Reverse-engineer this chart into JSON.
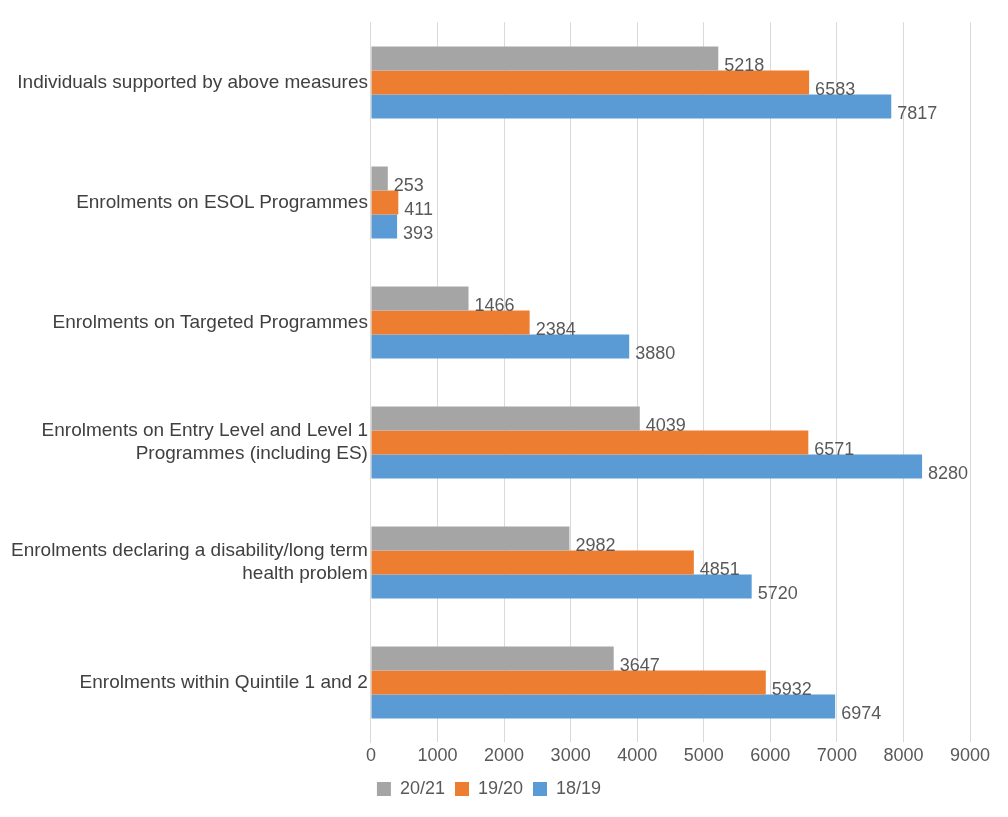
{
  "chart_data": {
    "type": "bar",
    "orientation": "horizontal",
    "categories": [
      "Individuals supported by above measures",
      "Enrolments on ESOL Programmes",
      "Enrolments on Targeted Programmes",
      "Enrolments on Entry Level and Level 1 Programmes (including ES)",
      "Enrolments declaring a disability/long term health problem",
      "Enrolments within Quintile 1 and 2"
    ],
    "series": [
      {
        "name": "20/21",
        "color": "#a5a5a5",
        "values": [
          5218,
          253,
          1466,
          4039,
          2982,
          3647
        ]
      },
      {
        "name": "19/20",
        "color": "#ed7d31",
        "values": [
          6583,
          411,
          2384,
          6571,
          4851,
          5932
        ]
      },
      {
        "name": "18/19",
        "color": "#5b9bd5",
        "values": [
          7817,
          393,
          3880,
          8280,
          5720,
          6974
        ]
      }
    ],
    "xlim": [
      0,
      9000
    ],
    "xticks": [
      0,
      1000,
      2000,
      3000,
      4000,
      5000,
      6000,
      7000,
      8000,
      9000
    ],
    "grid": "x",
    "legend": "bottom",
    "data_labels": true
  }
}
